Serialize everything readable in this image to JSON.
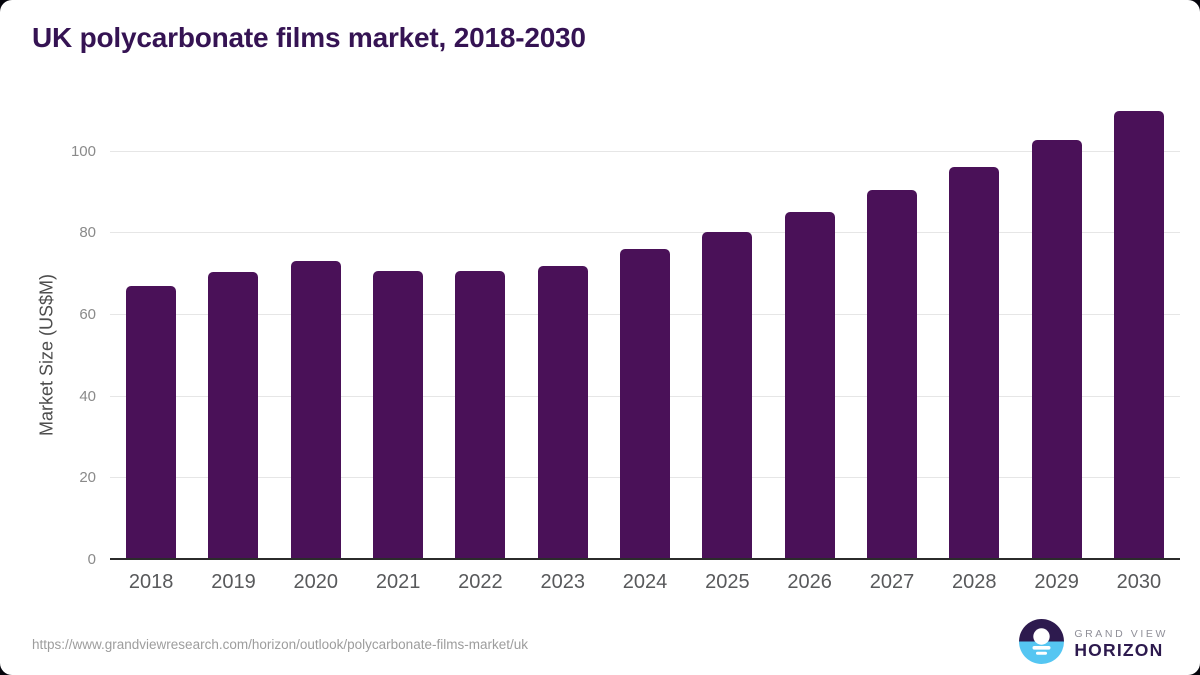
{
  "title": "UK polycarbonate films market, 2018-2030",
  "chart_data": {
    "type": "bar",
    "title": "UK polycarbonate films market, 2018-2030",
    "categories": [
      "2018",
      "2019",
      "2020",
      "2021",
      "2022",
      "2023",
      "2024",
      "2025",
      "2026",
      "2027",
      "2028",
      "2029",
      "2030"
    ],
    "values": [
      67.0,
      70.4,
      73.3,
      70.8,
      70.8,
      72.0,
      76.2,
      80.4,
      85.1,
      90.6,
      96.3,
      102.7,
      110.0
    ],
    "xlabel": "",
    "ylabel": "Market Size (US$M)",
    "yticks": [
      0,
      20,
      40,
      60,
      80,
      100
    ],
    "ylim": [
      0,
      112
    ],
    "grid": "horizontal",
    "legend": "none",
    "bar_color": "#4a1158"
  },
  "colors": {
    "bar": "#4a1158",
    "title": "#351353",
    "axis_line": "#2b2b2b",
    "gridline": "#e6e6e6",
    "y_tick_label": "#8a8a8a",
    "x_tick_label": "#58595b",
    "y_axis_title": "#4d4d4d",
    "footer_url": "#9d9d9d",
    "logo_purple": "#2d1a4e",
    "logo_blue": "#55c6f2",
    "logo_gray": "#8f8f98",
    "page_background": "#ffffff"
  },
  "footer": {
    "source_url": "https://www.grandviewresearch.com/horizon/outlook/polycarbonate-films-market/uk",
    "logo": {
      "top": "GRAND VIEW",
      "bottom": "HORIZON"
    }
  }
}
